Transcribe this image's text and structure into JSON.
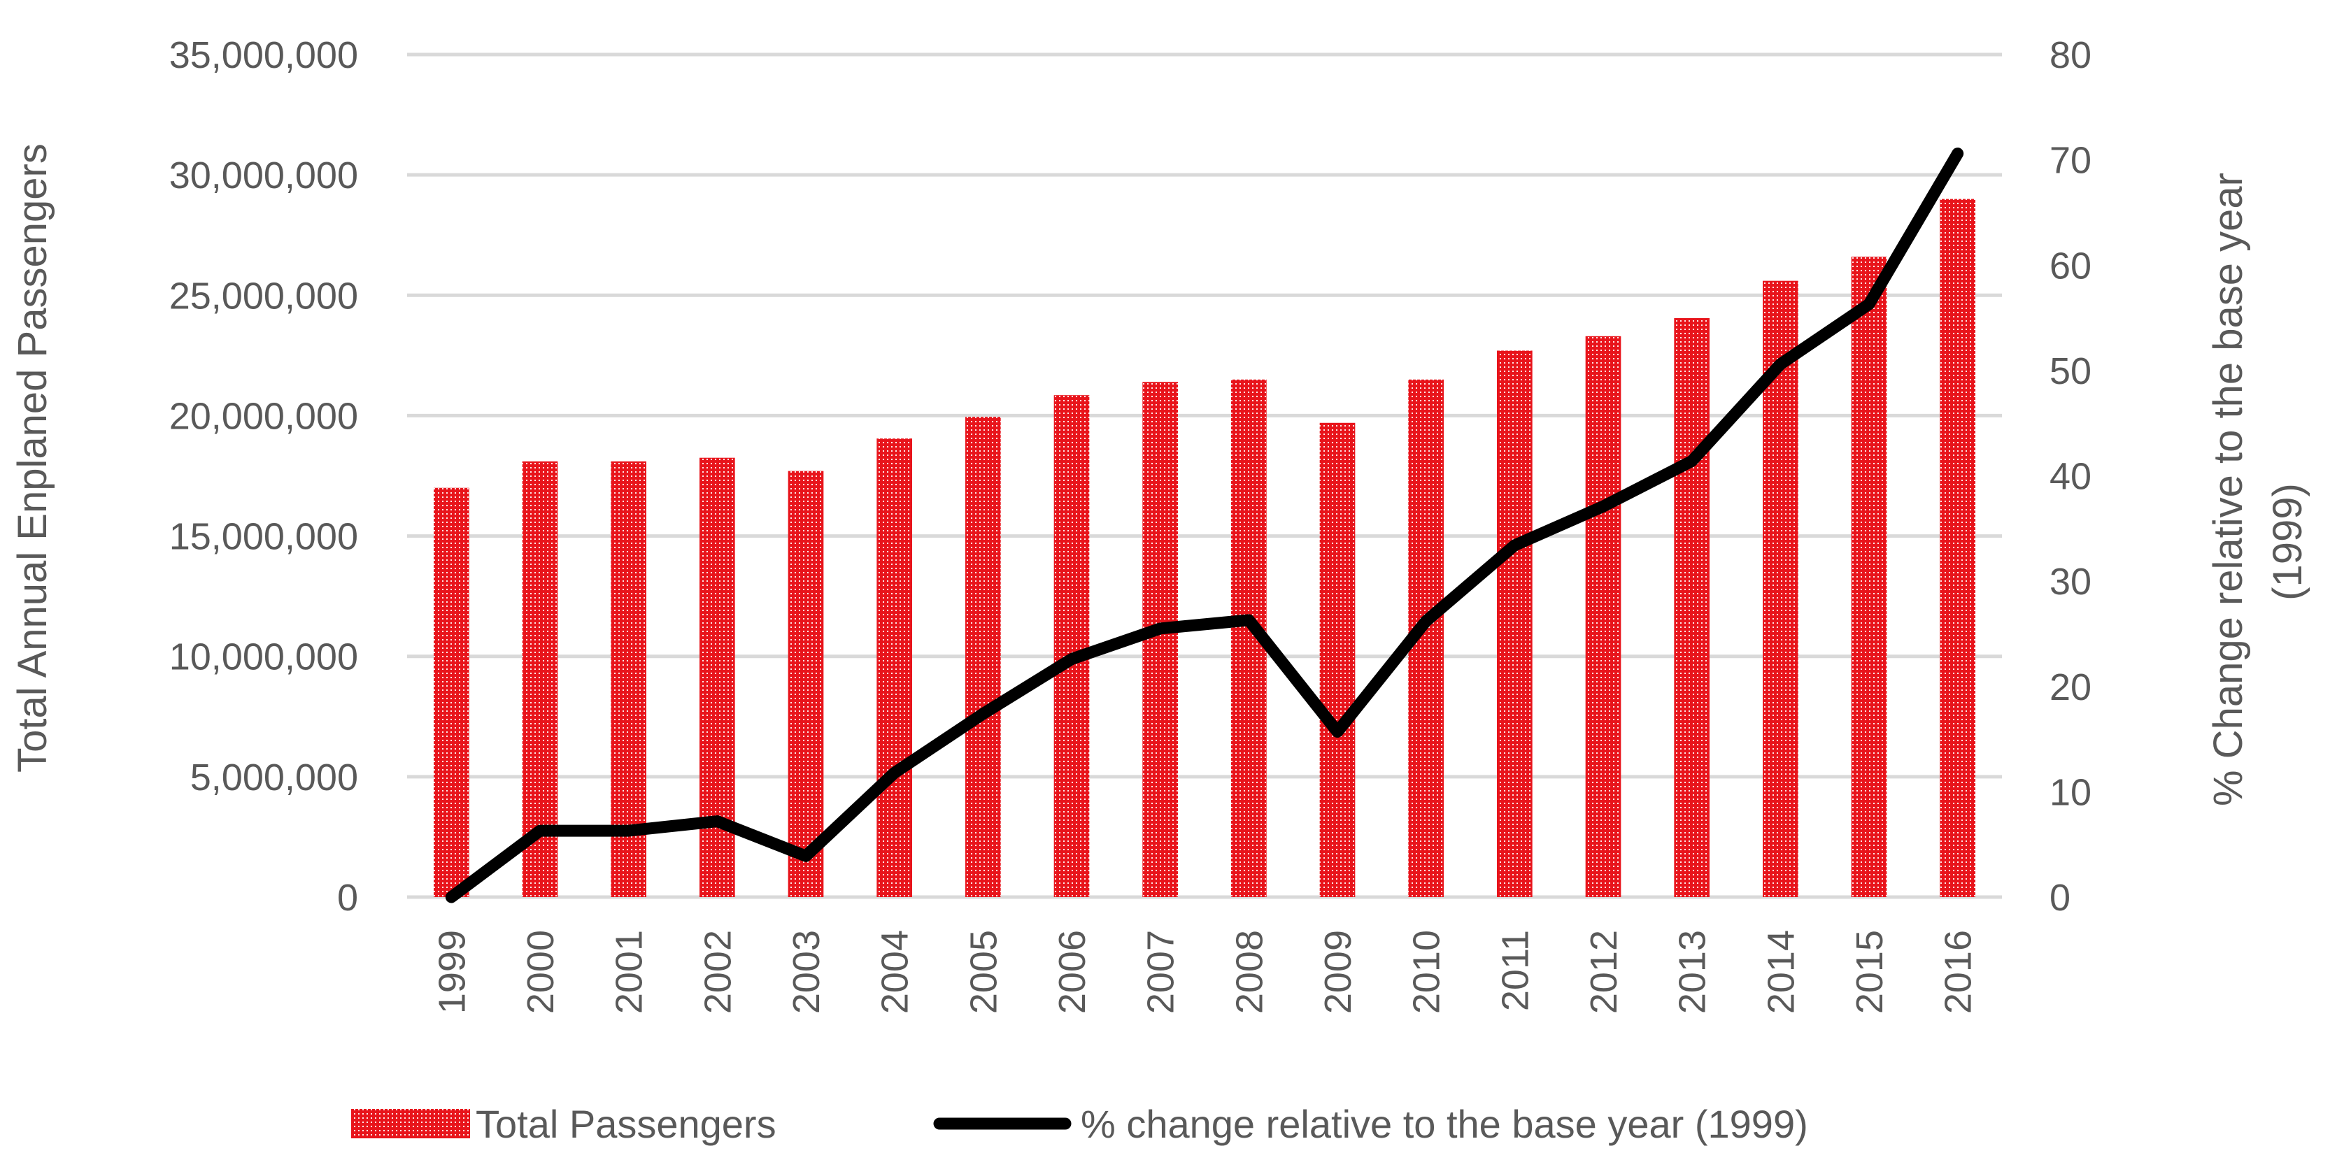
{
  "chart_data": {
    "type": "bar+line",
    "categories": [
      "1999",
      "2000",
      "2001",
      "2002",
      "2003",
      "2004",
      "2005",
      "2006",
      "2007",
      "2008",
      "2009",
      "2010",
      "2011",
      "2012",
      "2013",
      "2014",
      "2015",
      "2016"
    ],
    "series": [
      {
        "name": "Total Passengers",
        "type": "bar",
        "axis": "left",
        "color": "#e8141b",
        "values": [
          17000000,
          18100000,
          18100000,
          18250000,
          17700000,
          19050000,
          19950000,
          20850000,
          21400000,
          21500000,
          19700000,
          21500000,
          22700000,
          23300000,
          24050000,
          25600000,
          26600000,
          29000000
        ]
      },
      {
        "name": "% change relative to the base year (1999)",
        "type": "line",
        "axis": "right",
        "color": "#000000",
        "values": [
          0,
          6.3,
          6.3,
          7.2,
          3.9,
          11.8,
          17.4,
          22.6,
          25.5,
          26.3,
          15.7,
          26.2,
          33.4,
          37.1,
          41.4,
          50.6,
          56.3,
          70.6
        ]
      }
    ],
    "ylim_left": [
      0,
      35000000
    ],
    "ylim_right": [
      0,
      80
    ],
    "yticks_left": [
      "0",
      "5,000,000",
      "10,000,000",
      "15,000,000",
      "20,000,000",
      "25,000,000",
      "30,000,000",
      "35,000,000"
    ],
    "yticks_right": [
      "0",
      "10",
      "20",
      "30",
      "40",
      "50",
      "60",
      "70",
      "80"
    ],
    "ylabel_left": "Total Annual Enplaned Passengers",
    "ylabel_right_line1": "% Change relative to the base year",
    "ylabel_right_line2": "(1999)",
    "xlabel": "",
    "grid": true,
    "legend_position": "bottom",
    "legend": [
      "Total Passengers",
      "% change relative to the base year (1999)"
    ]
  }
}
